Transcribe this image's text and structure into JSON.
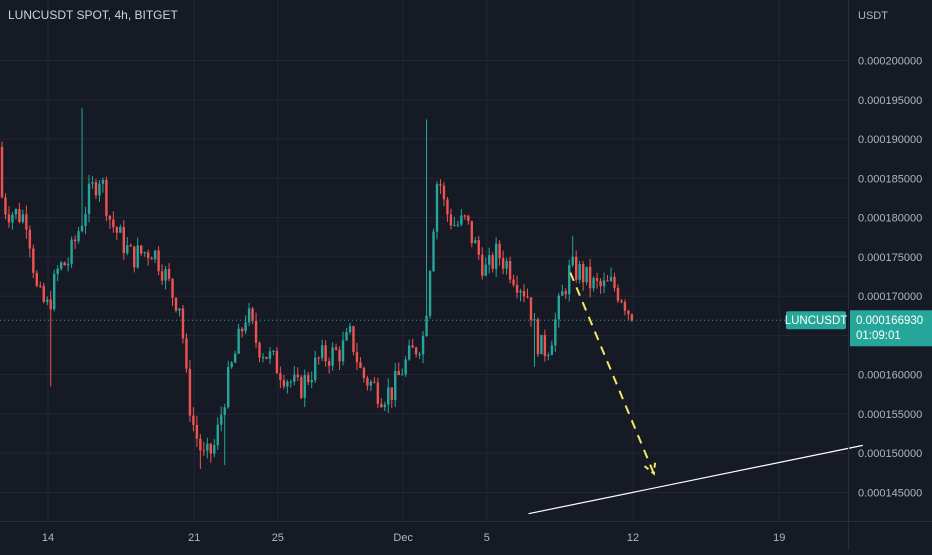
{
  "header": {
    "title": "LUNCUSDT SPOT, 4h, BITGET"
  },
  "colors": {
    "background": "#161a25",
    "grid": "#232734",
    "up": "#26a69a",
    "down": "#ef5350",
    "axis_text": "#b2b5be",
    "last_price_bg": "#26a69a",
    "projection_arrow": "#f5e663",
    "trend_line": "#ffffff"
  },
  "chart_data": {
    "type": "candlestick",
    "symbol": "LUNCUSDT",
    "exchange": "BITGET",
    "timeframe": "4h",
    "y_unit": "USDT",
    "ylim": [
      0.0001425,
      0.0002055
    ],
    "y_ticks": [
      "0.000145000",
      "0.000150000",
      "0.000155000",
      "0.000160000",
      "0.000165000",
      "0.000170000",
      "0.000175000",
      "0.000180000",
      "0.000185000",
      "0.000190000",
      "0.000195000",
      "0.000200000"
    ],
    "x_ticks": [
      "14",
      "21",
      "25",
      "Dec",
      "5",
      "12",
      "19"
    ],
    "x_tick_dates": [
      "2022-11-14",
      "2022-11-21",
      "2022-11-25",
      "2022-12-01",
      "2022-12-05",
      "2022-12-12",
      "2022-12-19"
    ],
    "x_range": [
      "2022-11-11",
      "2022-12-23"
    ],
    "grid": true,
    "last_price": {
      "label": "LUNCUSDT",
      "value": "0.000166930",
      "countdown": "01:09:01"
    },
    "candles_anchor": [
      [
        "2022-11-11",
        0.000189
      ],
      [
        "2022-11-12",
        0.000181
      ],
      [
        "2022-11-13",
        0.00018
      ],
      [
        "2022-11-13T12:00",
        0.00017
      ],
      [
        "2022-11-14",
        0.0001685
      ],
      [
        "2022-11-14T12:00",
        0.0001735
      ],
      [
        "2022-11-15",
        0.0001745
      ],
      [
        "2022-11-16",
        0.000183
      ],
      [
        "2022-11-16T12:00",
        0.0001855
      ],
      [
        "2022-11-17",
        0.0001795
      ],
      [
        "2022-11-18",
        0.000175
      ],
      [
        "2022-11-19",
        0.000176
      ],
      [
        "2022-11-19T12:00",
        0.0001735
      ],
      [
        "2022-11-20",
        0.00017
      ],
      [
        "2022-11-20T08:00",
        0.000169
      ],
      [
        "2022-11-20T16:00",
        0.000158
      ],
      [
        "2022-11-21",
        0.000153
      ],
      [
        "2022-11-21T12:00",
        0.000149
      ],
      [
        "2022-11-22",
        0.000151
      ],
      [
        "2022-11-22T12:00",
        0.000158
      ],
      [
        "2022-11-23",
        0.000163
      ],
      [
        "2022-11-23T12:00",
        0.000168
      ],
      [
        "2022-11-24",
        0.000164
      ],
      [
        "2022-11-25",
        0.000161
      ],
      [
        "2022-11-26",
        0.000158
      ],
      [
        "2022-11-27",
        0.000162
      ],
      [
        "2022-11-28",
        0.000163
      ],
      [
        "2022-11-28T12:00",
        0.000165
      ],
      [
        "2022-11-29",
        0.00016
      ],
      [
        "2022-11-30",
        0.0001575
      ],
      [
        "2022-11-30T12:00",
        0.000158
      ],
      [
        "2022-12-01",
        0.000161
      ],
      [
        "2022-12-01T12:00",
        0.000163
      ],
      [
        "2022-12-02",
        0.000165
      ],
      [
        "2022-12-02T08:00",
        0.000176
      ],
      [
        "2022-12-02T16:00",
        0.000186
      ],
      [
        "2022-12-03",
        0.000181
      ],
      [
        "2022-12-03T12:00",
        0.000179
      ],
      [
        "2022-12-04",
        0.0001795
      ],
      [
        "2022-12-04T12:00",
        0.000176
      ],
      [
        "2022-12-05",
        0.000173
      ],
      [
        "2022-12-05T12:00",
        0.0001755
      ],
      [
        "2022-12-06",
        0.000174
      ],
      [
        "2022-12-06T12:00",
        0.000172
      ],
      [
        "2022-12-07",
        0.00017
      ],
      [
        "2022-12-07T08:00",
        0.000165
      ],
      [
        "2022-12-07T16:00",
        0.000163
      ],
      [
        "2022-12-08",
        0.000164
      ],
      [
        "2022-12-08T12:00",
        0.000169
      ],
      [
        "2022-12-09",
        0.0001735
      ],
      [
        "2022-12-09T12:00",
        0.000173
      ],
      [
        "2022-12-10",
        0.0001715
      ],
      [
        "2022-12-10T12:00",
        0.000171
      ],
      [
        "2022-12-11",
        0.0001715
      ],
      [
        "2022-12-11T12:00",
        0.00017
      ],
      [
        "2022-12-12",
        0.0001669
      ]
    ],
    "annotations": [
      {
        "type": "dashed-arrow",
        "from": [
          "2022-12-09",
          0.000173
        ],
        "to": [
          "2022-12-13",
          0.0001474
        ]
      },
      {
        "type": "trend-line",
        "from": [
          "2022-12-07",
          0.0001423
        ],
        "to": [
          "2022-12-23",
          0.000151
        ]
      }
    ]
  }
}
